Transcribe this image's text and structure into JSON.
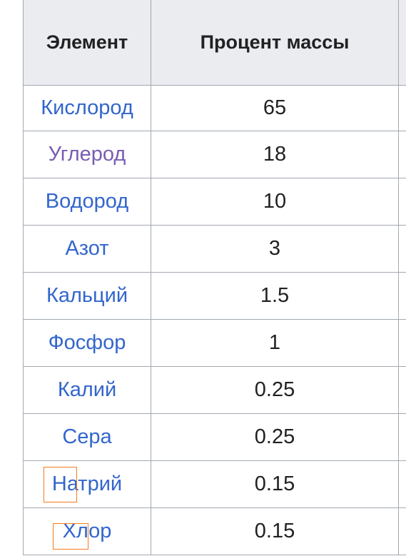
{
  "table": {
    "headers": [
      "Элемент",
      "Процент массы"
    ],
    "rows": [
      {
        "element": "Кислород",
        "percent": "65",
        "visited": false
      },
      {
        "element": "Углерод",
        "percent": "18",
        "visited": true
      },
      {
        "element": "Водород",
        "percent": "10",
        "visited": false
      },
      {
        "element": "Азот",
        "percent": "3",
        "visited": false
      },
      {
        "element": "Кальций",
        "percent": "1.5",
        "visited": false
      },
      {
        "element": "Фосфор",
        "percent": "1",
        "visited": false
      },
      {
        "element": "Калий",
        "percent": "0.25",
        "visited": false
      },
      {
        "element": "Сера",
        "percent": "0.25",
        "visited": false
      },
      {
        "element": "Натрий",
        "percent": "0.15",
        "visited": false
      },
      {
        "element": "Хлор",
        "percent": "0.15",
        "visited": false
      }
    ]
  },
  "colors": {
    "link": "#3366cc",
    "visited_link": "#795cb2",
    "header_bg": "#eaecf0",
    "border": "#a2a9b1",
    "highlight": "#f57c1f"
  }
}
